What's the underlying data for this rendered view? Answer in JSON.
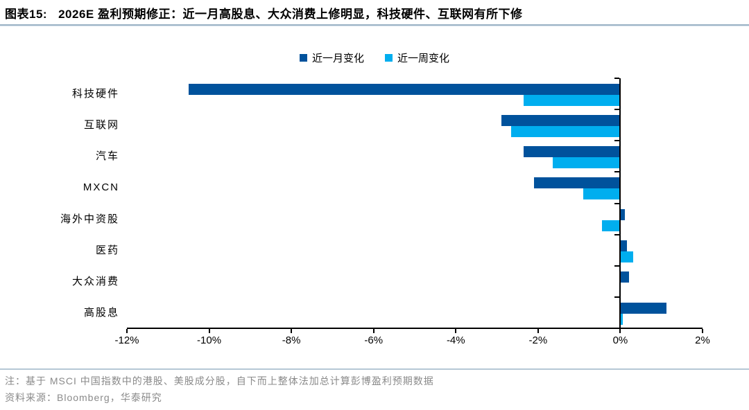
{
  "title": {
    "label": "图表15:",
    "text": "2026E 盈利预期修正：近一月高股息、大众消费上修明显，科技硬件、互联网有所下修"
  },
  "notes": {
    "note": "注：基于 MSCI 中国指数中的港股、美股成分股，自下而上整体法加总计算彭博盈利预期数据",
    "source": "资料来源：Bloomberg，华泰研究"
  },
  "colors": {
    "month_bar": "#00529C",
    "week_bar": "#00AEEF",
    "title_rule": "#9DB4C6",
    "note_rule": "#B5C7D5",
    "axis": "#000000",
    "note_text": "#8A8A8A"
  },
  "chart_data": {
    "type": "bar",
    "orientation": "horizontal",
    "title": "2026E 盈利预期修正",
    "categories": [
      "科技硬件",
      "互联网",
      "汽车",
      "MXCN",
      "海外中资股",
      "医药",
      "大众消费",
      "高股息"
    ],
    "series": [
      {
        "name": "近一月变化",
        "color": "#00529C",
        "values": [
          -10.5,
          -2.9,
          -2.35,
          -2.1,
          0.1,
          0.15,
          0.2,
          1.1
        ]
      },
      {
        "name": "近一周变化",
        "color": "#00AEEF",
        "values": [
          -2.35,
          -2.65,
          -1.65,
          -0.9,
          -0.45,
          0.3,
          0,
          0.05
        ]
      }
    ],
    "xlim": [
      -12,
      2
    ],
    "x_ticks": [
      "-12%",
      "-10%",
      "-8%",
      "-6%",
      "-4%",
      "-2%",
      "0%",
      "2%"
    ],
    "x_tick_values": [
      -12,
      -10,
      -8,
      -6,
      -4,
      -2,
      0,
      2
    ],
    "grid": false,
    "legend_position": "top-center",
    "value_unit": "%"
  }
}
